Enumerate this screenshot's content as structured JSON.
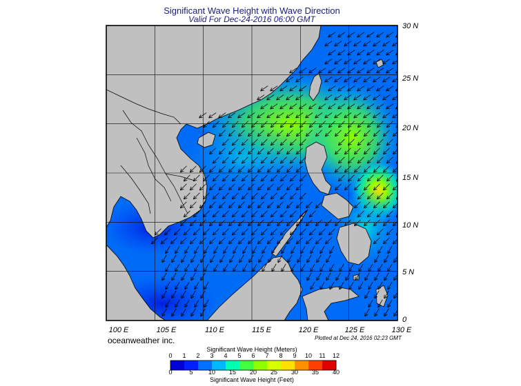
{
  "header": {
    "title": "Significant Wave Height with Wave Direction",
    "subtitle": "Valid For Dec-24-2016 06:00 GMT"
  },
  "map": {
    "lon_range": [
      100,
      130
    ],
    "lat_range": [
      0,
      30
    ],
    "lat_labels": [
      "30 N",
      "25 N",
      "20 N",
      "15 N",
      "10 N",
      "5 N",
      "0"
    ],
    "lon_labels": [
      "100 E",
      "105 E",
      "110 E",
      "115 E",
      "120 E",
      "125 E",
      "130 E"
    ],
    "land_color": "#c0c0c0",
    "arrow_direction": "southwest",
    "wave_peak": {
      "lon": 128,
      "lat": 13.5,
      "meters": 7
    }
  },
  "footer": {
    "brand": "oceanweather inc.",
    "plotted": "Plotted at Dec 24, 2016 02:23 GMT"
  },
  "colorbar": {
    "title_meters": "Significant Wave Height (Meters)",
    "title_feet": "Significant Wave Height (Feet)",
    "meters_ticks": [
      "0",
      "1",
      "2",
      "3",
      "4",
      "5",
      "6",
      "7",
      "8",
      "9",
      "10",
      "11",
      "12"
    ],
    "feet_ticks": [
      "0",
      "5",
      "10",
      "15",
      "20",
      "25",
      "30",
      "35",
      "40"
    ],
    "colors": [
      "#0000d8",
      "#0020ff",
      "#0070ff",
      "#00b8ff",
      "#00ffb0",
      "#40ff40",
      "#90ff00",
      "#d8ff00",
      "#ffe000",
      "#ff9000",
      "#ff4000",
      "#e00000"
    ]
  }
}
